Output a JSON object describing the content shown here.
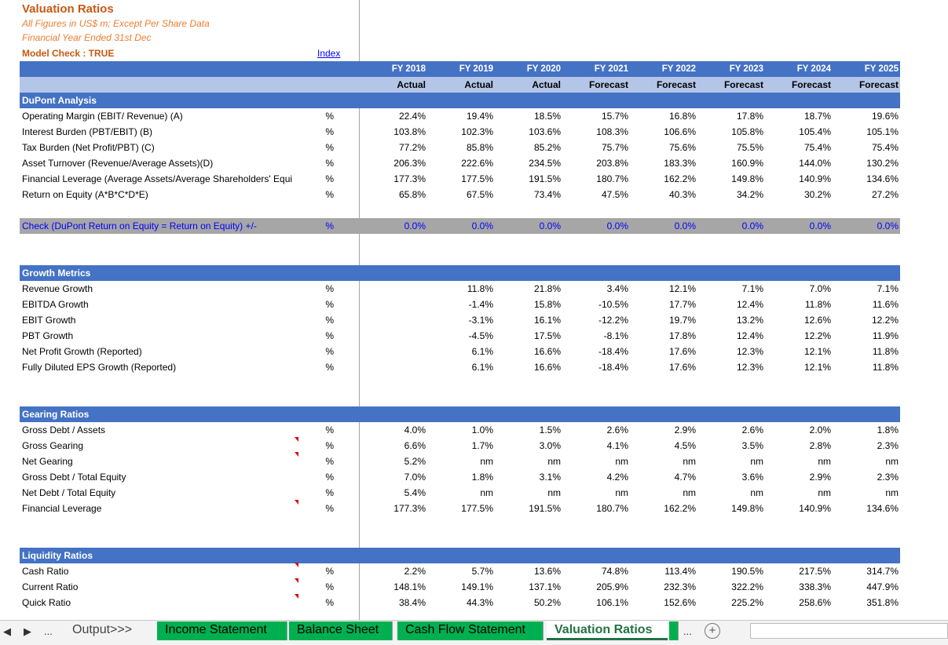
{
  "header": {
    "title": "Valuation Ratios",
    "subtitle1": "All Figures in US$ m; Except Per Share Data",
    "subtitle2": "Financial Year Ended 31st Dec",
    "model_check": "Model Check : TRUE",
    "index_link": "Index"
  },
  "columns": {
    "years": [
      "FY 2018",
      "FY 2019",
      "FY 2020",
      "FY 2021",
      "FY 2022",
      "FY 2023",
      "FY 2024",
      "FY 2025"
    ],
    "types": [
      "Actual",
      "Actual",
      "Actual",
      "Forecast",
      "Forecast",
      "Forecast",
      "Forecast",
      "Forecast"
    ]
  },
  "sections": {
    "dupont": {
      "title": "DuPont Analysis",
      "rows": [
        {
          "label": "Operating Margin (EBIT/ Revenue) (A)",
          "unit": "%",
          "values": [
            "22.4%",
            "19.4%",
            "18.5%",
            "15.7%",
            "16.8%",
            "17.8%",
            "18.7%",
            "19.6%"
          ]
        },
        {
          "label": "Interest Burden (PBT/EBIT) (B)",
          "unit": "%",
          "values": [
            "103.8%",
            "102.3%",
            "103.6%",
            "108.3%",
            "106.6%",
            "105.8%",
            "105.4%",
            "105.1%"
          ]
        },
        {
          "label": "Tax Burden (Net Profit/PBT) (C)",
          "unit": "%",
          "values": [
            "77.2%",
            "85.8%",
            "85.2%",
            "75.7%",
            "75.6%",
            "75.5%",
            "75.4%",
            "75.4%"
          ]
        },
        {
          "label": "Asset Turnover (Revenue/Average Assets)(D)",
          "unit": "%",
          "values": [
            "206.3%",
            "222.6%",
            "234.5%",
            "203.8%",
            "183.3%",
            "160.9%",
            "144.0%",
            "130.2%"
          ]
        },
        {
          "label": "Financial Leverage (Average Assets/Average Shareholders' Equi",
          "unit": "%",
          "values": [
            "177.3%",
            "177.5%",
            "191.5%",
            "180.7%",
            "162.2%",
            "149.8%",
            "140.9%",
            "134.6%"
          ]
        },
        {
          "label": "Return on Equity (A*B*C*D*E)",
          "unit": "%",
          "values": [
            "65.8%",
            "67.5%",
            "73.4%",
            "47.5%",
            "40.3%",
            "34.2%",
            "30.2%",
            "27.2%"
          ]
        }
      ]
    },
    "check": {
      "label": "Check (DuPont Return on Equity = Return on Equity) +/-",
      "unit": "%",
      "values": [
        "0.0%",
        "0.0%",
        "0.0%",
        "0.0%",
        "0.0%",
        "0.0%",
        "0.0%",
        "0.0%"
      ]
    },
    "growth": {
      "title": "Growth Metrics",
      "rows": [
        {
          "label": "Revenue Growth",
          "unit": "%",
          "values": [
            "",
            "11.8%",
            "21.8%",
            "3.4%",
            "12.1%",
            "7.1%",
            "7.0%",
            "7.1%"
          ]
        },
        {
          "label": "EBITDA Growth",
          "unit": "%",
          "values": [
            "",
            "-1.4%",
            "15.8%",
            "-10.5%",
            "17.7%",
            "12.4%",
            "11.8%",
            "11.6%"
          ]
        },
        {
          "label": "EBIT Growth",
          "unit": "%",
          "values": [
            "",
            "-3.1%",
            "16.1%",
            "-12.2%",
            "19.7%",
            "13.2%",
            "12.6%",
            "12.2%"
          ]
        },
        {
          "label": "PBT Growth",
          "unit": "%",
          "values": [
            "",
            "-4.5%",
            "17.5%",
            "-8.1%",
            "17.8%",
            "12.4%",
            "12.2%",
            "11.9%"
          ]
        },
        {
          "label": "Net Profit Growth (Reported)",
          "unit": "%",
          "values": [
            "",
            "6.1%",
            "16.6%",
            "-18.4%",
            "17.6%",
            "12.3%",
            "12.1%",
            "11.8%"
          ]
        },
        {
          "label": "Fully Diluted EPS Growth (Reported)",
          "unit": "%",
          "values": [
            "",
            "6.1%",
            "16.6%",
            "-18.4%",
            "17.6%",
            "12.3%",
            "12.1%",
            "11.8%"
          ]
        }
      ]
    },
    "gearing": {
      "title": "Gearing Ratios",
      "rows": [
        {
          "label": "Gross Debt / Assets",
          "unit": "%",
          "values": [
            "4.0%",
            "1.0%",
            "1.5%",
            "2.6%",
            "2.9%",
            "2.6%",
            "2.0%",
            "1.8%"
          ]
        },
        {
          "label": "Gross Gearing",
          "unit": "%",
          "values": [
            "6.6%",
            "1.7%",
            "3.0%",
            "4.1%",
            "4.5%",
            "3.5%",
            "2.8%",
            "2.3%"
          ]
        },
        {
          "label": "Net Gearing",
          "unit": "%",
          "values": [
            "5.2%",
            "nm",
            "nm",
            "nm",
            "nm",
            "nm",
            "nm",
            "nm"
          ]
        },
        {
          "label": "Gross Debt / Total Equity",
          "unit": "%",
          "values": [
            "7.0%",
            "1.8%",
            "3.1%",
            "4.2%",
            "4.7%",
            "3.6%",
            "2.9%",
            "2.3%"
          ]
        },
        {
          "label": "Net Debt / Total Equity",
          "unit": "%",
          "values": [
            "5.4%",
            "nm",
            "nm",
            "nm",
            "nm",
            "nm",
            "nm",
            "nm"
          ]
        },
        {
          "label": "Financial Leverage",
          "unit": "%",
          "values": [
            "177.3%",
            "177.5%",
            "191.5%",
            "180.7%",
            "162.2%",
            "149.8%",
            "140.9%",
            "134.6%"
          ]
        }
      ]
    },
    "liquidity": {
      "title": "Liquidity Ratios",
      "rows": [
        {
          "label": "Cash Ratio",
          "unit": "%",
          "values": [
            "2.2%",
            "5.7%",
            "13.6%",
            "74.8%",
            "113.4%",
            "190.5%",
            "217.5%",
            "314.7%"
          ]
        },
        {
          "label": "Current Ratio",
          "unit": "%",
          "values": [
            "148.1%",
            "149.1%",
            "137.1%",
            "205.9%",
            "232.3%",
            "322.2%",
            "338.3%",
            "447.9%"
          ]
        },
        {
          "label": "Quick Ratio",
          "unit": "%",
          "values": [
            "38.4%",
            "44.3%",
            "50.2%",
            "106.1%",
            "152.6%",
            "225.2%",
            "258.6%",
            "351.8%"
          ]
        }
      ]
    }
  },
  "tabs": {
    "ellipsis": "...",
    "output": "Output>>>",
    "income": "Income Statement",
    "balance": "Balance Sheet",
    "cashflow": "Cash Flow Statement",
    "valuation": "Valuation Ratios",
    "more": "...",
    "add": "+",
    "prev": "◀",
    "next": "▶"
  }
}
